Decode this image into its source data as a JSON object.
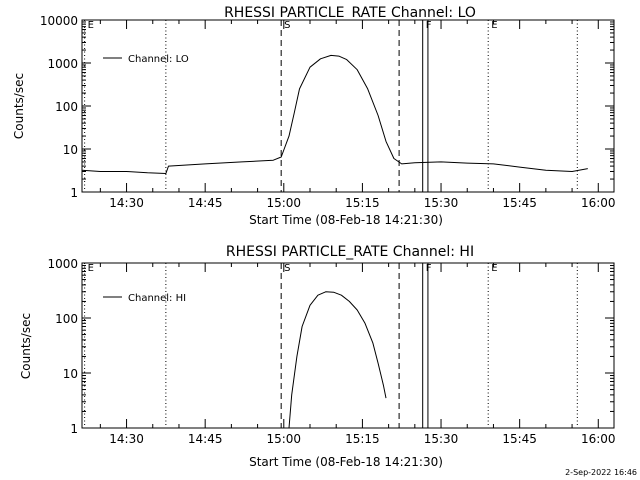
{
  "page": {
    "date_stamp": "2-Sep-2022 16:46"
  },
  "chart_data": [
    {
      "type": "line",
      "title": "RHESSI PARTICLE_RATE Channel: LO",
      "xlabel": "Start Time (08-Feb-18 14:21:30)",
      "ylabel": "Counts/sec",
      "yscale": "log",
      "ylim": [
        1,
        10000
      ],
      "xlim": [
        "14:21:30",
        "16:03:00"
      ],
      "grid": false,
      "legend_position": "top-left",
      "xticks": [
        "14:30",
        "14:45",
        "15:00",
        "15:15",
        "15:30",
        "15:45",
        "16:00"
      ],
      "yticks": [
        "1",
        "10",
        "100",
        "1000",
        "10000"
      ],
      "markers": [
        {
          "label": "E",
          "time": "14:22:00",
          "style": "dotted"
        },
        {
          "label": "",
          "time": "14:37:30",
          "style": "dotted"
        },
        {
          "label": "S",
          "time": "14:59:30",
          "style": "dashed"
        },
        {
          "label": "",
          "time": "15:22:00",
          "style": "dashed"
        },
        {
          "label": "F",
          "time": "15:26:30",
          "style": "solid"
        },
        {
          "label": "",
          "time": "15:27:30",
          "style": "solid"
        },
        {
          "label": "E",
          "time": "15:39:00",
          "style": "dotted"
        },
        {
          "label": "",
          "time": "15:56:00",
          "style": "dotted"
        }
      ],
      "series": [
        {
          "name": "Channel: LO",
          "x": [
            "14:21:30",
            "14:25:00",
            "14:30:00",
            "14:34:00",
            "14:37:30",
            "14:38:00",
            "14:45:00",
            "14:52:00",
            "14:58:00",
            "14:59:30",
            "15:01:00",
            "15:02:00",
            "15:03:00",
            "15:05:00",
            "15:07:00",
            "15:09:00",
            "15:10:30",
            "15:12:00",
            "15:14:00",
            "15:16:00",
            "15:18:00",
            "15:19:30",
            "15:21:00",
            "15:22:30",
            "15:25:00",
            "15:30:00",
            "15:35:00",
            "15:40:00",
            "15:45:00",
            "15:50:00",
            "15:55:00",
            "15:58:00"
          ],
          "y": [
            3.2,
            3.0,
            3.0,
            2.8,
            2.7,
            4.0,
            4.5,
            5.0,
            5.5,
            6.5,
            20,
            70,
            250,
            800,
            1250,
            1500,
            1450,
            1200,
            700,
            250,
            60,
            15,
            6,
            4.5,
            4.8,
            5.0,
            4.7,
            4.5,
            3.8,
            3.2,
            3.0,
            3.5
          ]
        }
      ]
    },
    {
      "type": "line",
      "title": "RHESSI PARTICLE_RATE Channel: HI",
      "xlabel": "Start Time (08-Feb-18 14:21:30)",
      "ylabel": "Counts/sec",
      "yscale": "log",
      "ylim": [
        1,
        1000
      ],
      "xlim": [
        "14:21:30",
        "16:03:00"
      ],
      "grid": false,
      "legend_position": "top-left",
      "xticks": [
        "14:30",
        "14:45",
        "15:00",
        "15:15",
        "15:30",
        "15:45",
        "16:00"
      ],
      "yticks": [
        "1",
        "10",
        "100",
        "1000"
      ],
      "markers": [
        {
          "label": "E",
          "time": "14:22:00",
          "style": "dotted"
        },
        {
          "label": "",
          "time": "14:37:30",
          "style": "dotted"
        },
        {
          "label": "S",
          "time": "14:59:30",
          "style": "dashed"
        },
        {
          "label": "",
          "time": "15:22:00",
          "style": "dashed"
        },
        {
          "label": "F",
          "time": "15:26:30",
          "style": "solid"
        },
        {
          "label": "",
          "time": "15:27:30",
          "style": "solid"
        },
        {
          "label": "E",
          "time": "15:39:00",
          "style": "dotted"
        },
        {
          "label": "",
          "time": "15:56:00",
          "style": "dotted"
        }
      ],
      "series": [
        {
          "name": "Channel: HI",
          "x": [
            "15:01:00",
            "15:01:30",
            "15:02:30",
            "15:03:30",
            "15:05:00",
            "15:06:30",
            "15:08:00",
            "15:09:30",
            "15:11:00",
            "15:12:30",
            "15:14:00",
            "15:15:30",
            "15:17:00",
            "15:18:00",
            "15:19:00",
            "15:19:30"
          ],
          "y": [
            1,
            4,
            20,
            70,
            170,
            260,
            300,
            295,
            260,
            200,
            140,
            80,
            35,
            15,
            6,
            3.5
          ]
        }
      ]
    }
  ]
}
